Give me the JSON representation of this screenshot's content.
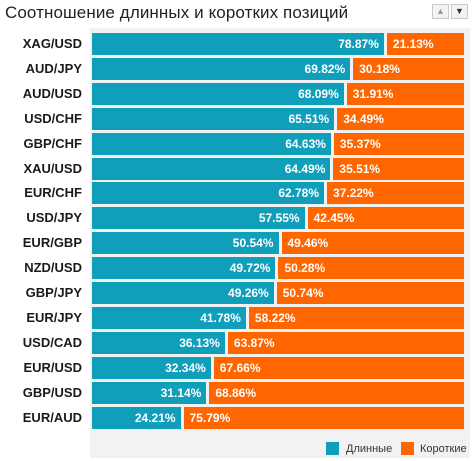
{
  "title": "Соотношение длинных и коротких позиций",
  "controls": {
    "sort_up_icon": "▲",
    "sort_down_icon": "▼"
  },
  "colors": {
    "long": "#0f9fbb",
    "short": "#ff6600",
    "plot_background": "#f2f2f2"
  },
  "legend": {
    "long": "Длинные",
    "short": "Короткие"
  },
  "chart_data": {
    "type": "bar",
    "orientation": "horizontal",
    "stacked": true,
    "title": "Соотношение длинных и коротких позиций",
    "unit": "%",
    "xlim": [
      0,
      100
    ],
    "categories": [
      "XAG/USD",
      "AUD/JPY",
      "AUD/USD",
      "USD/CHF",
      "GBP/CHF",
      "XAU/USD",
      "EUR/CHF",
      "USD/JPY",
      "EUR/GBP",
      "NZD/USD",
      "GBP/JPY",
      "EUR/JPY",
      "USD/CAD",
      "EUR/USD",
      "GBP/USD",
      "EUR/AUD"
    ],
    "series": [
      {
        "name": "Длинные",
        "labels": [
          "78.87%",
          "69.82%",
          "68.09%",
          "65.51%",
          "64.63%",
          "64.49%",
          "62.78%",
          "57.55%",
          "50.54%",
          "49.72%",
          "49.26%",
          "41.78%",
          "36.13%",
          "32.34%",
          "31.14%",
          "24.21%"
        ],
        "values": [
          78.87,
          69.82,
          68.09,
          65.51,
          64.63,
          64.49,
          62.78,
          57.55,
          50.54,
          49.72,
          49.26,
          41.78,
          36.13,
          32.34,
          31.14,
          24.21
        ]
      },
      {
        "name": "Короткие",
        "labels": [
          "21.13%",
          "30.18%",
          "31.91%",
          "34.49%",
          "35.37%",
          "35.51%",
          "37.22%",
          "42.45%",
          "49.46%",
          "50.28%",
          "50.74%",
          "58.22%",
          "63.87%",
          "67.66%",
          "68.86%",
          "75.79%"
        ],
        "values": [
          21.13,
          30.18,
          31.91,
          34.49,
          35.37,
          35.51,
          37.22,
          42.45,
          49.46,
          50.28,
          50.74,
          58.22,
          63.87,
          67.66,
          68.86,
          75.79
        ]
      }
    ],
    "legend_position": "bottom-right",
    "grid": false
  }
}
